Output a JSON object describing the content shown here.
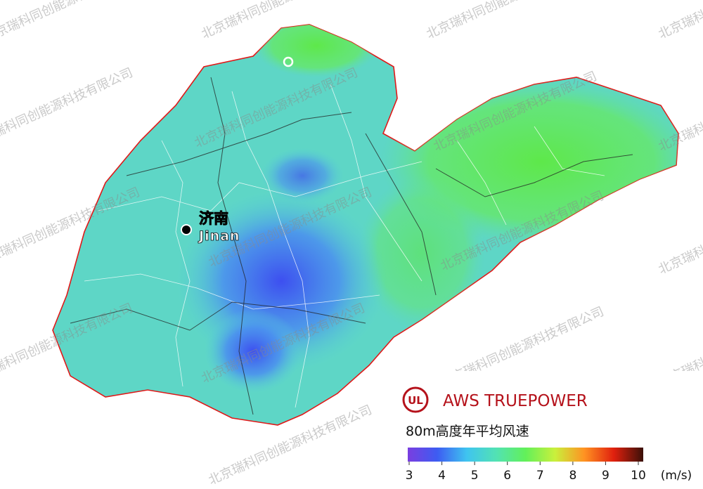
{
  "watermark": "北京瑞科同创能源科技有限公司",
  "city": {
    "name_zh": "济南",
    "name_en": "Jinan"
  },
  "logo": {
    "mark": "UL",
    "brand": "AWS TRUEPOWER"
  },
  "legend": {
    "title": "80m高度年平均风速",
    "unit": "(m/s)",
    "ticks": [
      3,
      4,
      5,
      6,
      7,
      8,
      9,
      10
    ],
    "colors": [
      "#7a3ee0",
      "#3d5cf2",
      "#3fc4f0",
      "#52e2b4",
      "#62f05a",
      "#c9f03c",
      "#ff9222",
      "#e0200e",
      "#3a1008"
    ]
  }
}
